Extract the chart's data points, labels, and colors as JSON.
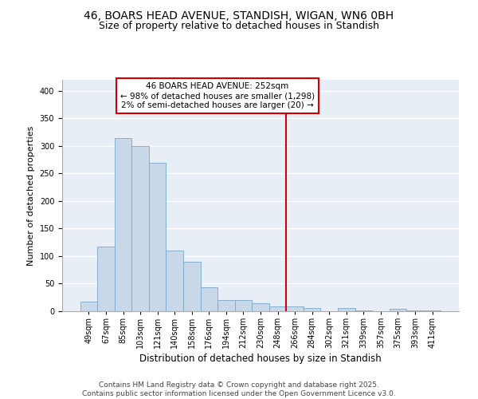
{
  "title": "46, BOARS HEAD AVENUE, STANDISH, WIGAN, WN6 0BH",
  "subtitle": "Size of property relative to detached houses in Standish",
  "xlabel": "Distribution of detached houses by size in Standish",
  "ylabel": "Number of detached properties",
  "categories": [
    "49sqm",
    "67sqm",
    "85sqm",
    "103sqm",
    "121sqm",
    "140sqm",
    "158sqm",
    "176sqm",
    "194sqm",
    "212sqm",
    "230sqm",
    "248sqm",
    "266sqm",
    "284sqm",
    "302sqm",
    "321sqm",
    "339sqm",
    "357sqm",
    "375sqm",
    "393sqm",
    "411sqm"
  ],
  "values": [
    18,
    117,
    315,
    300,
    270,
    110,
    90,
    44,
    21,
    20,
    14,
    8,
    8,
    6,
    0,
    6,
    1,
    0,
    4,
    1,
    2
  ],
  "bar_color": "#c8d8e8",
  "bar_edge_color": "#7aa8c8",
  "vline_color": "#cc0000",
  "annotation_text": "46 BOARS HEAD AVENUE: 252sqm\n← 98% of detached houses are smaller (1,298)\n2% of semi-detached houses are larger (20) →",
  "annotation_box_color": "#cc0000",
  "ylim": [
    0,
    420
  ],
  "yticks": [
    0,
    50,
    100,
    150,
    200,
    250,
    300,
    350,
    400
  ],
  "background_color": "#e8eef5",
  "fig_background": "#ffffff",
  "footer_line1": "Contains HM Land Registry data © Crown copyright and database right 2025.",
  "footer_line2": "Contains public sector information licensed under the Open Government Licence v3.0.",
  "title_fontsize": 10,
  "subtitle_fontsize": 9,
  "xlabel_fontsize": 8.5,
  "ylabel_fontsize": 8,
  "tick_fontsize": 7,
  "footer_fontsize": 6.5
}
